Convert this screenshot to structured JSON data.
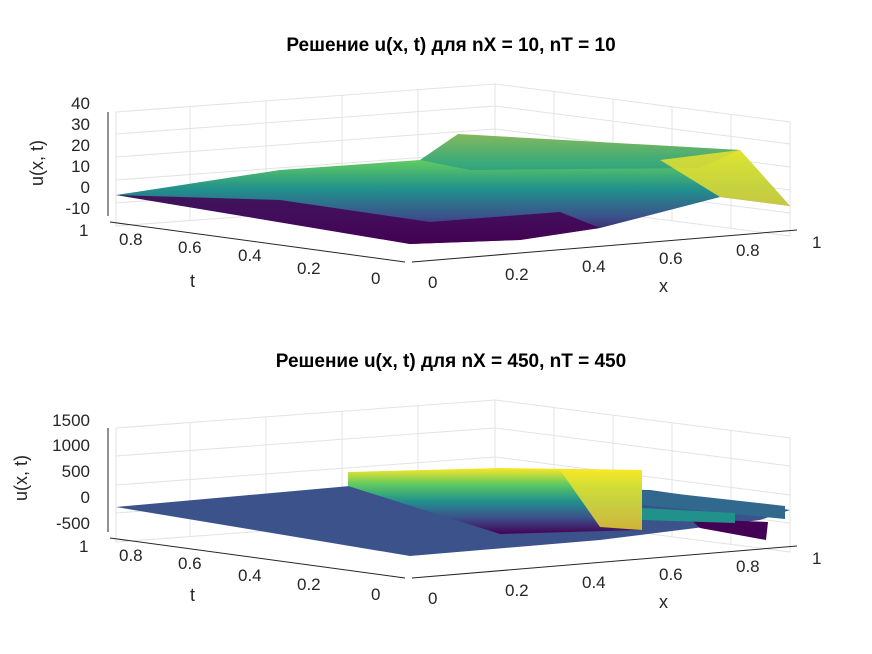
{
  "chart_data": [
    {
      "type": "surface",
      "title": "Решение u(x, t) для nX = 10, nT = 10",
      "xlabel": "x",
      "ylabel": "t",
      "zlabel": "u(x, t)",
      "xlim": [
        0,
        1
      ],
      "ylim": [
        0,
        1
      ],
      "zlim": [
        -10,
        40
      ],
      "x_ticks": [
        "0",
        "0.2",
        "0.4",
        "0.6",
        "0.8",
        "1"
      ],
      "y_ticks": [
        "0",
        "0.2",
        "0.4",
        "0.6",
        "0.8",
        "1"
      ],
      "z_ticks": [
        "-10",
        "0",
        "10",
        "20",
        "30",
        "40"
      ],
      "x_tick_values": [
        0,
        0.2,
        0.4,
        0.6,
        0.8,
        1
      ],
      "y_tick_values": [
        0,
        0.2,
        0.4,
        0.6,
        0.8,
        1
      ],
      "z_tick_values": [
        -10,
        0,
        10,
        20,
        30,
        40
      ],
      "colormap": "viridis",
      "x": [
        0,
        0.1,
        0.2,
        0.3,
        0.4,
        0.5,
        0.6,
        0.7,
        0.8,
        0.9,
        1.0
      ],
      "t": [
        0,
        0.1,
        0.2,
        0.3,
        0.4,
        0.5,
        0.6,
        0.7,
        0.8,
        0.9,
        1.0
      ],
      "u_t0": [
        0,
        -3,
        -5,
        -5,
        -3,
        -1,
        3,
        8,
        13,
        22,
        9
      ],
      "u_t0_5": [
        0,
        0,
        0,
        0,
        1,
        3,
        6,
        10,
        14,
        19,
        6
      ],
      "u_t1": [
        0,
        0,
        0,
        0,
        0,
        0,
        0,
        0,
        0,
        0,
        0
      ]
    },
    {
      "type": "surface",
      "title": "Решение u(x, t) для nX = 450, nT = 450",
      "xlabel": "x",
      "ylabel": "t",
      "zlabel": "u(x, t)",
      "xlim": [
        0,
        1
      ],
      "ylim": [
        0,
        1
      ],
      "zlim": [
        -500,
        1500
      ],
      "x_ticks": [
        "0",
        "0.2",
        "0.4",
        "0.6",
        "0.8",
        "1"
      ],
      "y_ticks": [
        "0",
        "0.2",
        "0.4",
        "0.6",
        "0.8",
        "1"
      ],
      "z_ticks": [
        "-500",
        "0",
        "500",
        "1000",
        "1500"
      ],
      "x_tick_values": [
        0,
        0.2,
        0.4,
        0.6,
        0.8,
        1
      ],
      "y_tick_values": [
        0,
        0.2,
        0.4,
        0.6,
        0.8,
        1
      ],
      "z_tick_values": [
        -500,
        0,
        500,
        1000,
        1500
      ],
      "colormap": "viridis",
      "x": [
        0,
        0.1,
        0.2,
        0.3,
        0.4,
        0.5,
        0.6,
        0.7,
        0.8,
        0.9,
        1.0
      ],
      "t": [
        0,
        0.1,
        0.2,
        0.3,
        0.4,
        0.5,
        0.6,
        0.7,
        0.8,
        0.9,
        1.0
      ],
      "u_t0": [
        0,
        0,
        0,
        0,
        -20,
        0,
        200,
        350,
        520,
        760,
        -200
      ],
      "u_t0_5": [
        0,
        0,
        0,
        0,
        0,
        10,
        120,
        250,
        400,
        620,
        120
      ],
      "u_t1": [
        0,
        0,
        0,
        0,
        0,
        0,
        0,
        0,
        0,
        0,
        0
      ]
    }
  ]
}
